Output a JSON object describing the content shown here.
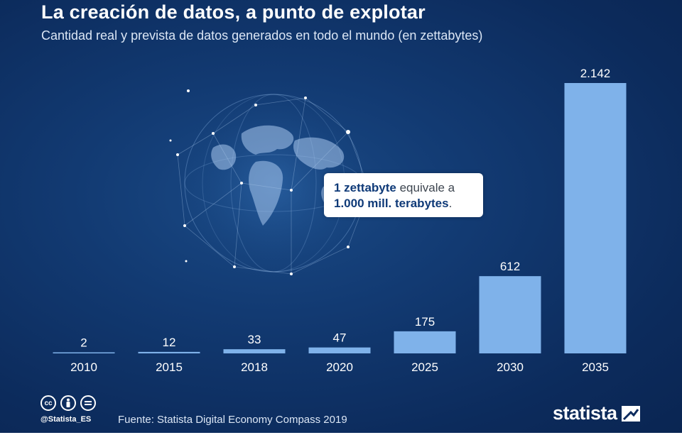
{
  "header": {
    "title": "La creación de datos, a punto de explotar",
    "subtitle": "Cantidad real y prevista de datos generados en todo el mundo (en zettabytes)"
  },
  "callout": {
    "bold_1": "1 zettabyte",
    "text_1": " equivale a",
    "bold_2": "1.000 mill. terabytes",
    "text_2": "."
  },
  "footer": {
    "handle": "@Statista_ES",
    "source": "Fuente: Statista Digital Economy Compass 2019",
    "brand": "statista",
    "icons": [
      "cc-icon",
      "by-icon",
      "nd-icon"
    ]
  },
  "colors": {
    "background": "#0d2b5e",
    "bar": "#7fb2ea",
    "text": "#ffffff"
  },
  "chart_data": {
    "type": "bar",
    "categories": [
      "2010",
      "2015",
      "2018",
      "2020",
      "2025",
      "2030",
      "2035"
    ],
    "values": [
      2,
      12,
      33,
      47,
      175,
      612,
      2142
    ],
    "value_labels": [
      "2",
      "12",
      "33",
      "47",
      "175",
      "612",
      "2.142"
    ],
    "title": "La creación de datos, a punto de explotar",
    "ylabel": "",
    "xlabel": "",
    "ylim": [
      0,
      2142
    ],
    "grid": false,
    "legend": "none"
  }
}
